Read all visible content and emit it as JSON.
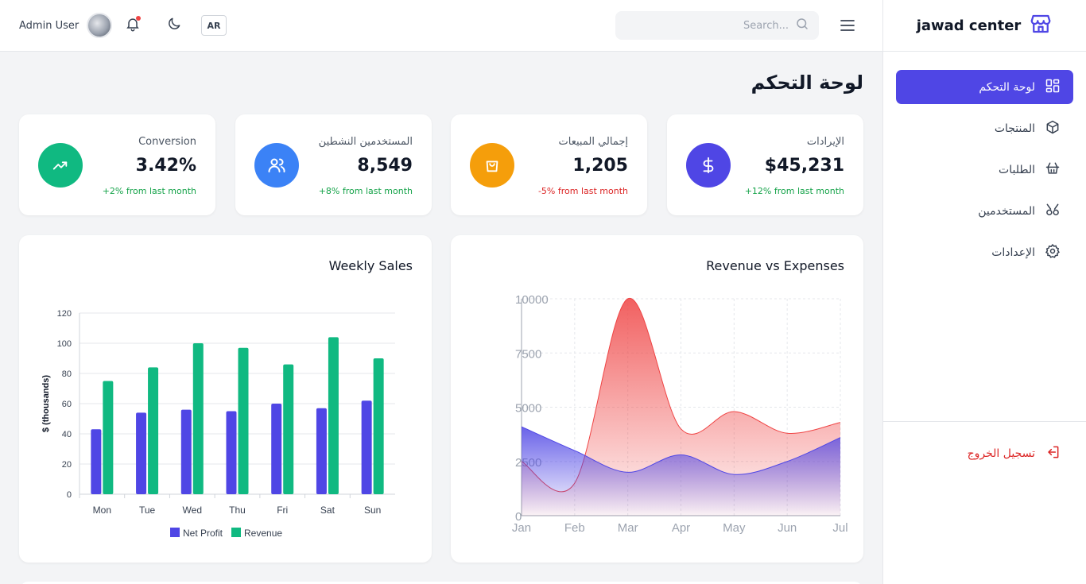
{
  "brand": {
    "name": "jawad center",
    "icon": "store-icon"
  },
  "nav": {
    "items": [
      {
        "label": "لوحة التحكم",
        "icon": "dashboard-icon",
        "active": true
      },
      {
        "label": "المنتجات",
        "icon": "package-icon"
      },
      {
        "label": "الطلبات",
        "icon": "shopping-basket-icon"
      },
      {
        "label": "المستخدمين",
        "icon": "users-icon"
      },
      {
        "label": "الإعدادات",
        "icon": "gear-icon"
      }
    ],
    "logout": "تسجيل الخروج"
  },
  "header": {
    "user_name": "Admin User",
    "lang": "AR",
    "search_placeholder": "Search..."
  },
  "page": {
    "title": "لوحة التحكم"
  },
  "stats": [
    {
      "label": "الإيرادات",
      "value": "$45,231",
      "change": "+12% from last month",
      "trend": "up",
      "color": "#4f46e5",
      "icon": "dollar-icon"
    },
    {
      "label": "إجمالي المبيعات",
      "value": "1,205",
      "change": "-5% from last month",
      "trend": "down",
      "color": "#f59e0b",
      "icon": "shopping-bag-icon"
    },
    {
      "label": "المستخدمين النشطين",
      "value": "8,549",
      "change": "+8% from last month",
      "trend": "up",
      "color": "#3b82f6",
      "icon": "users-icon"
    },
    {
      "label": "Conversion",
      "value": "3.42%",
      "change": "+2% from last month",
      "trend": "up",
      "color": "#10b981",
      "icon": "trending-up-icon"
    }
  ],
  "chart_data": [
    {
      "type": "bar",
      "title": "Weekly Sales",
      "ylabel": "$ (thousands)",
      "ylim": [
        0,
        120
      ],
      "yticks": [
        0,
        20,
        40,
        60,
        80,
        100,
        120
      ],
      "categories": [
        "Mon",
        "Tue",
        "Wed",
        "Thu",
        "Fri",
        "Sat",
        "Sun"
      ],
      "series": [
        {
          "name": "Net Profit",
          "color": "#4f46e5",
          "values": [
            43,
            54,
            56,
            55,
            60,
            57,
            62
          ]
        },
        {
          "name": "Revenue",
          "color": "#10b981",
          "values": [
            75,
            84,
            100,
            97,
            86,
            104,
            90
          ]
        }
      ],
      "legend": "bottom",
      "grid": true
    },
    {
      "type": "area",
      "title": "Revenue vs Expenses",
      "ylim": [
        0,
        10000
      ],
      "yticks": [
        "0",
        "2500",
        "5000",
        "7500",
        "10000"
      ],
      "x": [
        "Jan",
        "Feb",
        "Mar",
        "Apr",
        "May",
        "Jun",
        "Jul"
      ],
      "series": [
        {
          "color": "#ef4444",
          "values": [
            2500,
            1500,
            10000,
            4000,
            4800,
            3800,
            4300
          ]
        },
        {
          "color": "#4f46e5",
          "values": [
            4100,
            3000,
            2000,
            2800,
            1900,
            2500,
            3600
          ]
        }
      ],
      "grid": true
    }
  ]
}
